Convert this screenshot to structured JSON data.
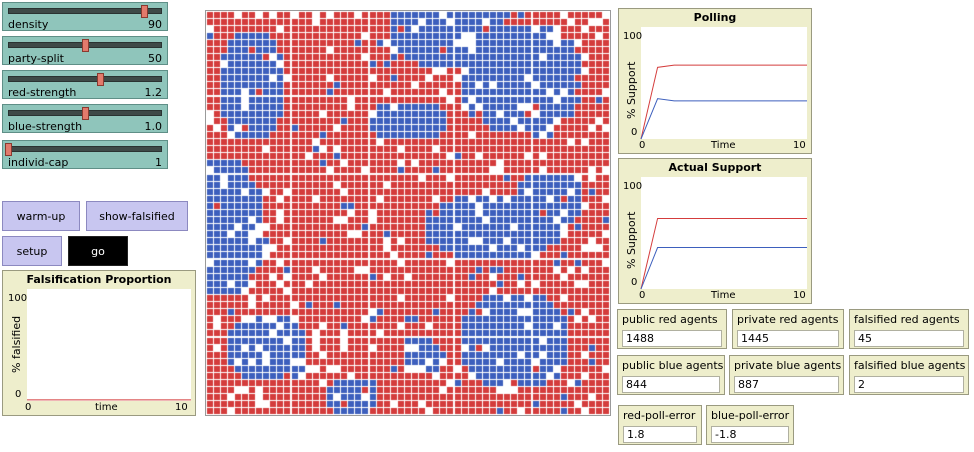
{
  "sliders": [
    {
      "label": "density",
      "value": "90",
      "fraction": 0.88
    },
    {
      "label": "party-split",
      "value": "50",
      "fraction": 0.5
    },
    {
      "label": "red-strength",
      "value": "1.2",
      "fraction": 0.6
    },
    {
      "label": "blue-strength",
      "value": "1.0",
      "fraction": 0.5
    },
    {
      "label": "individ-cap",
      "value": "1",
      "fraction": 0.0
    }
  ],
  "buttons": {
    "warm_up": "warm-up",
    "show_falsified": "show-falsified",
    "setup": "setup",
    "go": "go"
  },
  "colors": {
    "red": "#d43c3c",
    "blue": "#3d5fbd",
    "empty": "#ffffff"
  },
  "plots": {
    "falsification": {
      "title": "Falsification Proportion",
      "ylabel": "% falsified",
      "xlabel": "time",
      "y_max": "100",
      "y_min": "0",
      "x_min": "0",
      "x_max": "10"
    },
    "polling": {
      "title": "Polling",
      "ylabel": "% Support",
      "xlabel": "Time",
      "y_max": "100",
      "y_min": "0",
      "x_min": "0",
      "x_max": "10"
    },
    "actual": {
      "title": "Actual Support",
      "ylabel": "% Support",
      "xlabel": "Time",
      "y_max": "100",
      "y_min": "0",
      "x_min": "0",
      "x_max": "10"
    }
  },
  "chart_data": [
    {
      "type": "line",
      "title": "Falsification Proportion",
      "xlabel": "time",
      "ylabel": "% falsified",
      "xlim": [
        0,
        10
      ],
      "ylim": [
        0,
        100
      ],
      "series": [
        {
          "color": "#d43c3c",
          "x": [
            0,
            10
          ],
          "y": [
            1,
            1
          ]
        }
      ]
    },
    {
      "type": "line",
      "title": "Polling",
      "xlabel": "Time",
      "ylabel": "% Support",
      "xlim": [
        0,
        10
      ],
      "ylim": [
        0,
        100
      ],
      "series": [
        {
          "color": "#d43c3c",
          "x": [
            0,
            1,
            2,
            10
          ],
          "y": [
            0,
            64,
            66,
            66
          ]
        },
        {
          "color": "#3d5fbd",
          "x": [
            0,
            1,
            2,
            10
          ],
          "y": [
            0,
            36,
            34,
            34
          ]
        }
      ]
    },
    {
      "type": "line",
      "title": "Actual Support",
      "xlabel": "Time",
      "ylabel": "% Support",
      "xlim": [
        0,
        10
      ],
      "ylim": [
        0,
        100
      ],
      "series": [
        {
          "color": "#d43c3c",
          "x": [
            0,
            1,
            10
          ],
          "y": [
            0,
            63,
            63
          ]
        },
        {
          "color": "#3d5fbd",
          "x": [
            0,
            1,
            10
          ],
          "y": [
            0,
            37,
            37
          ]
        }
      ]
    }
  ],
  "monitors": [
    {
      "label": "public red agents",
      "value": "1488"
    },
    {
      "label": "private red agents",
      "value": "1445"
    },
    {
      "label": "falsified red agents",
      "value": "45"
    },
    {
      "label": "public blue agents",
      "value": "844"
    },
    {
      "label": "private blue agents",
      "value": "887"
    },
    {
      "label": "falsified blue agents",
      "value": "2"
    },
    {
      "label": "red-poll-error",
      "value": "1.8"
    },
    {
      "label": "blue-poll-error",
      "value": "-1.8"
    }
  ]
}
